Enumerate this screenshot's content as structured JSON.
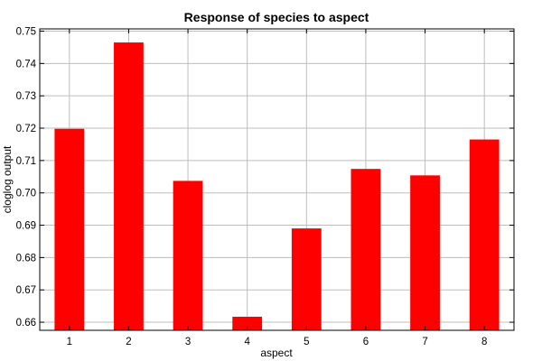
{
  "chart_data": {
    "type": "bar",
    "title": "Response of species to aspect",
    "xlabel": "aspect",
    "ylabel": "cloglog output",
    "categories": [
      "1",
      "2",
      "3",
      "4",
      "5",
      "6",
      "7",
      "8"
    ],
    "values": [
      0.7198,
      0.7465,
      0.7037,
      0.6617,
      0.689,
      0.7074,
      0.7054,
      0.7165
    ],
    "ylim": [
      0.6575,
      0.7507
    ],
    "yticks": [
      "0.66",
      "0.67",
      "0.68",
      "0.69",
      "0.70",
      "0.71",
      "0.72",
      "0.73",
      "0.74",
      "0.75"
    ],
    "grid": true,
    "bar_color": "#ff0000"
  }
}
